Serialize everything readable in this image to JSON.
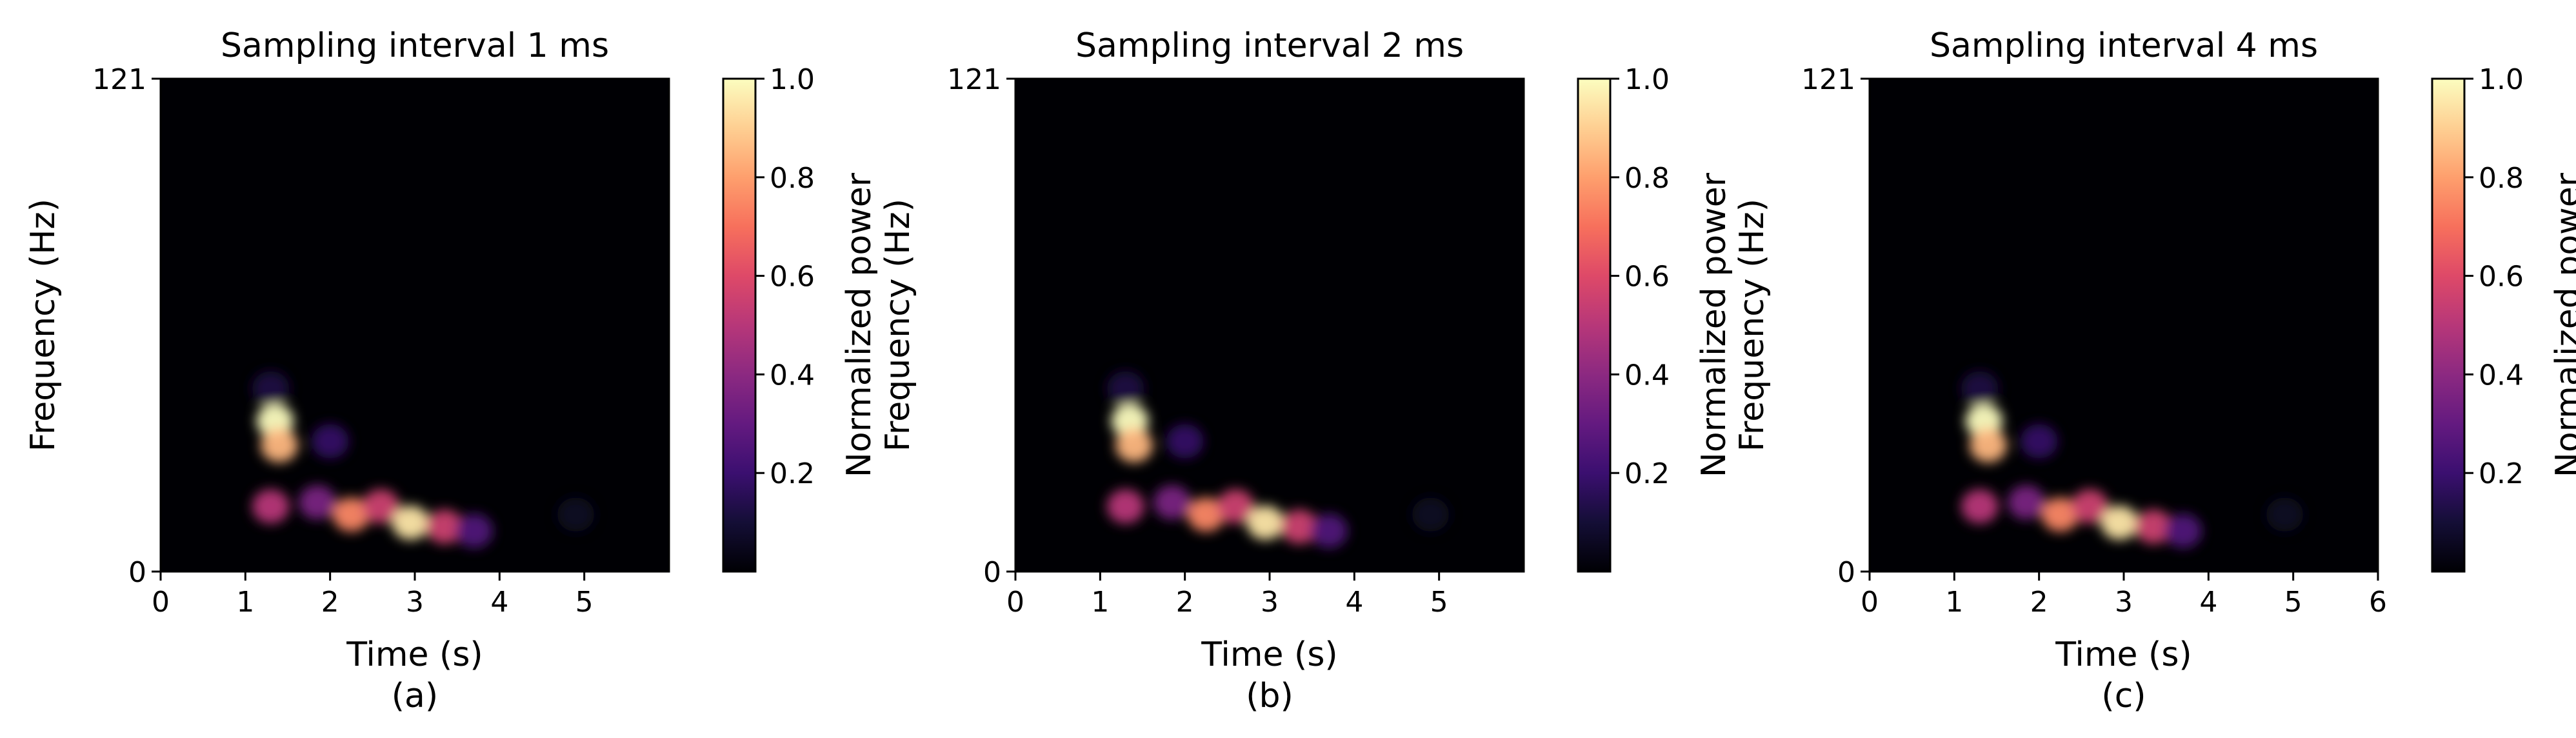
{
  "chart_data": [
    {
      "type": "heatmap",
      "title": "Sampling interval 1 ms",
      "caption": "(a)",
      "xlabel": "Time (s)",
      "ylabel": "Frequency (Hz)",
      "xlim": [
        0,
        6
      ],
      "ylim": [
        0,
        121
      ],
      "xticks": [
        0,
        1,
        2,
        3,
        4,
        5
      ],
      "yticks": [
        0,
        121
      ],
      "colorbar": {
        "label": "Normalized power",
        "colormap": "magma",
        "range": [
          0,
          1
        ],
        "ticks": [
          0.2,
          0.4,
          0.6,
          0.8,
          1.0
        ]
      },
      "blobs": [
        {
          "t": 1.35,
          "f": 37,
          "power": 1.0
        },
        {
          "t": 1.4,
          "f": 31,
          "power": 0.85
        },
        {
          "t": 1.3,
          "f": 45,
          "power": 0.12
        },
        {
          "t": 2.0,
          "f": 32,
          "power": 0.18
        },
        {
          "t": 1.3,
          "f": 16,
          "power": 0.5
        },
        {
          "t": 1.85,
          "f": 17,
          "power": 0.35
        },
        {
          "t": 2.25,
          "f": 14,
          "power": 0.75
        },
        {
          "t": 2.6,
          "f": 16,
          "power": 0.55
        },
        {
          "t": 2.95,
          "f": 12,
          "power": 0.95
        },
        {
          "t": 3.35,
          "f": 11,
          "power": 0.55
        },
        {
          "t": 3.7,
          "f": 10,
          "power": 0.25
        },
        {
          "t": 4.9,
          "f": 14,
          "power": 0.06
        }
      ]
    },
    {
      "type": "heatmap",
      "title": "Sampling interval 2 ms",
      "caption": "(b)",
      "xlabel": "Time (s)",
      "ylabel": "Frequency (Hz)",
      "xlim": [
        0,
        6
      ],
      "ylim": [
        0,
        121
      ],
      "xticks": [
        0,
        1,
        2,
        3,
        4,
        5
      ],
      "yticks": [
        0,
        121
      ],
      "colorbar": {
        "label": "Normalized power",
        "colormap": "magma",
        "range": [
          0,
          1
        ],
        "ticks": [
          0.2,
          0.4,
          0.6,
          0.8,
          1.0
        ]
      },
      "blobs": [
        {
          "t": 1.35,
          "f": 37,
          "power": 1.0
        },
        {
          "t": 1.4,
          "f": 31,
          "power": 0.85
        },
        {
          "t": 1.3,
          "f": 45,
          "power": 0.12
        },
        {
          "t": 2.0,
          "f": 32,
          "power": 0.18
        },
        {
          "t": 1.3,
          "f": 16,
          "power": 0.5
        },
        {
          "t": 1.85,
          "f": 17,
          "power": 0.35
        },
        {
          "t": 2.25,
          "f": 14,
          "power": 0.75
        },
        {
          "t": 2.6,
          "f": 16,
          "power": 0.55
        },
        {
          "t": 2.95,
          "f": 12,
          "power": 0.95
        },
        {
          "t": 3.35,
          "f": 11,
          "power": 0.55
        },
        {
          "t": 3.7,
          "f": 10,
          "power": 0.25
        },
        {
          "t": 4.9,
          "f": 14,
          "power": 0.06
        }
      ]
    },
    {
      "type": "heatmap",
      "title": "Sampling interval 4 ms",
      "caption": "(c)",
      "xlabel": "Time (s)",
      "ylabel": "Frequency (Hz)",
      "xlim": [
        0,
        6
      ],
      "ylim": [
        0,
        121
      ],
      "xticks": [
        0,
        1,
        2,
        3,
        4,
        5,
        6
      ],
      "yticks": [
        0,
        121
      ],
      "colorbar": {
        "label": "Normalized power",
        "colormap": "magma",
        "range": [
          0,
          1
        ],
        "ticks": [
          0.2,
          0.4,
          0.6,
          0.8,
          1.0
        ]
      },
      "blobs": [
        {
          "t": 1.35,
          "f": 37,
          "power": 1.0
        },
        {
          "t": 1.4,
          "f": 31,
          "power": 0.85
        },
        {
          "t": 1.3,
          "f": 45,
          "power": 0.12
        },
        {
          "t": 2.0,
          "f": 32,
          "power": 0.18
        },
        {
          "t": 1.3,
          "f": 16,
          "power": 0.5
        },
        {
          "t": 1.85,
          "f": 17,
          "power": 0.35
        },
        {
          "t": 2.25,
          "f": 14,
          "power": 0.75
        },
        {
          "t": 2.6,
          "f": 16,
          "power": 0.55
        },
        {
          "t": 2.95,
          "f": 12,
          "power": 0.95
        },
        {
          "t": 3.35,
          "f": 11,
          "power": 0.55
        },
        {
          "t": 3.7,
          "f": 10,
          "power": 0.25
        },
        {
          "t": 4.9,
          "f": 14,
          "power": 0.06
        }
      ]
    }
  ]
}
